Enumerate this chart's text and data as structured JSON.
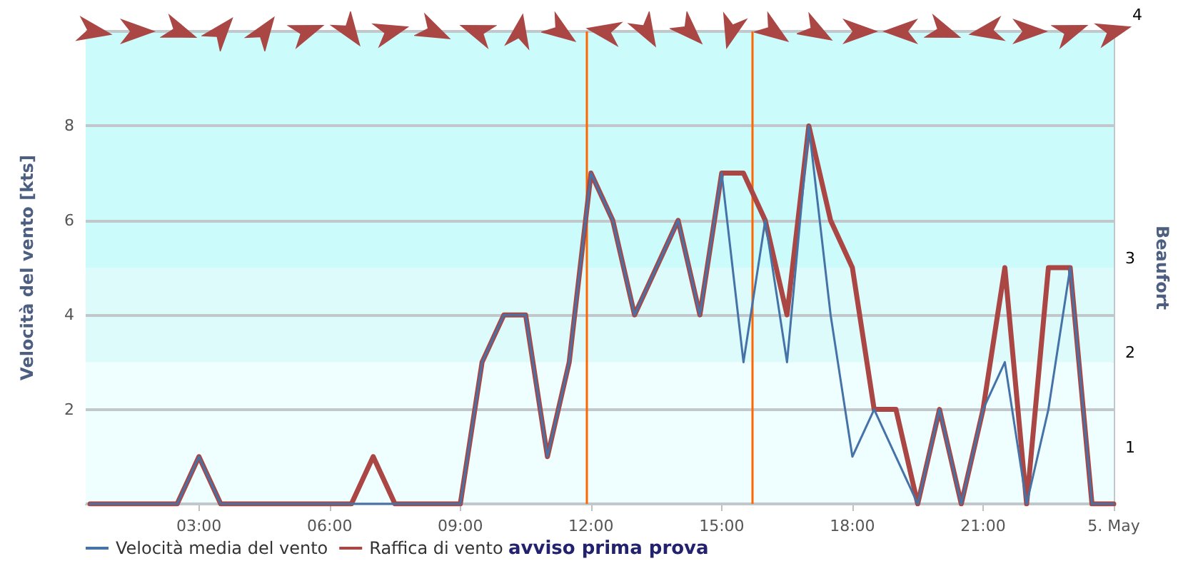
{
  "chart_data": {
    "type": "line",
    "xlabel": null,
    "ylabel": "Velocità del vento [kts]",
    "y2label": "Beaufort",
    "x": [
      0.5,
      1,
      1.5,
      2,
      2.5,
      3,
      3.5,
      4,
      4.5,
      5,
      5.5,
      6,
      6.5,
      7,
      7.5,
      8,
      8.5,
      9,
      9.5,
      10,
      10.5,
      11,
      11.5,
      12,
      12.5,
      13,
      13.5,
      14,
      14.5,
      15,
      15.5,
      16,
      16.5,
      17,
      17.5,
      18,
      18.5,
      19,
      19.5,
      20,
      20.5,
      21,
      21.5,
      22,
      22.5,
      23,
      23.5,
      24
    ],
    "series": [
      {
        "name": "Velocità media del vento",
        "color": "#4572a7",
        "values": [
          0,
          0,
          0,
          0,
          0,
          1,
          0,
          0,
          0,
          0,
          0,
          0,
          0,
          0,
          0,
          0,
          0,
          0,
          3,
          4,
          4,
          1,
          3,
          7,
          6,
          4,
          5,
          6,
          4,
          7,
          3,
          6,
          3,
          8,
          4,
          1,
          2,
          1,
          0,
          2,
          0,
          2,
          3,
          0,
          2,
          5,
          0,
          0
        ]
      },
      {
        "name": "Raffica di vento",
        "color": "#aa4643",
        "values": [
          0,
          0,
          0,
          0,
          0,
          1,
          0,
          0,
          0,
          0,
          0,
          0,
          0,
          1,
          0,
          0,
          0,
          0,
          3,
          4,
          4,
          1,
          3,
          7,
          6,
          4,
          5,
          6,
          4,
          7,
          7,
          6,
          4,
          8,
          6,
          5,
          2,
          2,
          0,
          2,
          0,
          2,
          5,
          0,
          5,
          5,
          0,
          0
        ]
      }
    ],
    "xlim": [
      0.4,
      24
    ],
    "xticks": [
      {
        "value": 3,
        "label": "03:00"
      },
      {
        "value": 6,
        "label": "06:00"
      },
      {
        "value": 9,
        "label": "09:00"
      },
      {
        "value": 12,
        "label": "12:00"
      },
      {
        "value": 15,
        "label": "15:00"
      },
      {
        "value": 18,
        "label": "18:00"
      },
      {
        "value": 21,
        "label": "21:00"
      },
      {
        "value": 24,
        "label": "5. May"
      }
    ],
    "ylim": [
      0,
      10
    ],
    "yticks": [
      {
        "value": 0,
        "label": null
      },
      2,
      4,
      6,
      8,
      {
        "value": 10,
        "label": null
      }
    ],
    "y2lim": [
      0.4,
      5.4
    ],
    "y2ticks": [
      1,
      2,
      3
    ],
    "bands": [
      {
        "axis": "y",
        "from": 0,
        "to": 3,
        "label": null,
        "color": "#effefe"
      },
      {
        "axis": "y",
        "from": 3,
        "to": 5,
        "label": null,
        "color": "#ddfbfb"
      },
      {
        "axis": "y",
        "from": 5,
        "to": 10,
        "label": null,
        "color": "#ccfbfb"
      }
    ],
    "ref_lines": [
      {
        "axis": "x",
        "value": 11.9,
        "label": null,
        "color": "#ff6600"
      },
      {
        "axis": "x",
        "value": 15.7,
        "label": null,
        "color": "#ff6600"
      }
    ],
    "annotations": [
      "avviso prima prova",
      "4"
    ],
    "grid": "y",
    "legend": "bottom left",
    "marker": "none",
    "line_style": "solid"
  }
}
